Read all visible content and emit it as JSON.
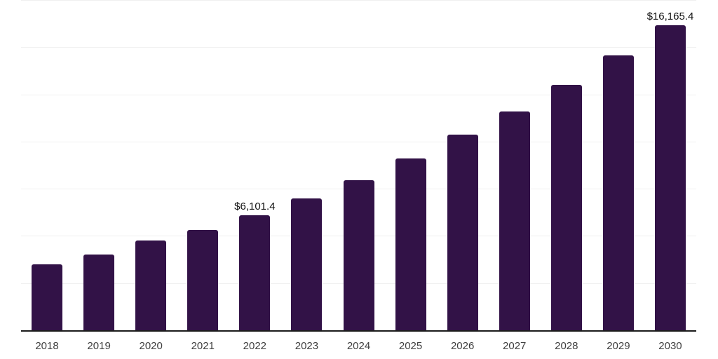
{
  "chart_data": {
    "type": "bar",
    "title": "",
    "xlabel": "",
    "ylabel": "",
    "legend": "none",
    "grid": true,
    "grid_interval": 2500,
    "ylim": [
      0,
      17500
    ],
    "categories": [
      "2018",
      "2019",
      "2020",
      "2021",
      "2022",
      "2023",
      "2024",
      "2025",
      "2026",
      "2027",
      "2028",
      "2029",
      "2030"
    ],
    "values": [
      3480,
      4000,
      4740,
      5300,
      6101.4,
      6980,
      7940,
      9110,
      10360,
      11610,
      13020,
      14550,
      16165.4
    ],
    "point_labels": [
      "",
      "",
      "",
      "",
      "$6,101.4",
      "",
      "",
      "",
      "",
      "",
      "",
      "",
      "$16,165.4"
    ],
    "colors": {
      "bar": "#321247",
      "axis_line": "#1c1c1c",
      "gridline": "#f0f0f0",
      "tick_label": "#3f3f3f",
      "data_label": "#111111",
      "background": "#ffffff"
    }
  }
}
